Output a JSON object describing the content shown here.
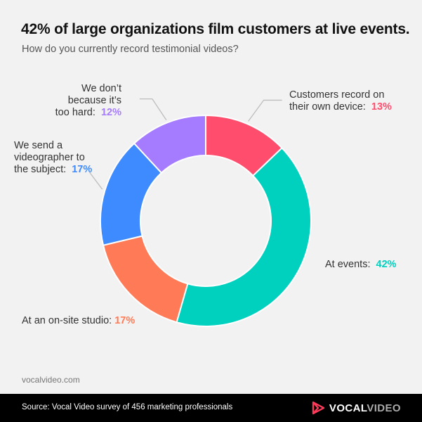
{
  "title": "42% of large organizations film customers at live events.",
  "subtitle": "How do you currently record testimonial videos?",
  "chart_data": {
    "type": "pie",
    "donut": true,
    "slices": [
      {
        "label_lines": [
          "Customers record on",
          "their own device:"
        ],
        "value": 13,
        "pct_label": "13%",
        "color": "#ff4d6d"
      },
      {
        "label_lines": [
          "At events:"
        ],
        "value": 42,
        "pct_label": "42%",
        "color": "#00d1bf"
      },
      {
        "label_lines": [
          "At an on-site studio:"
        ],
        "value": 17,
        "pct_label": "17%",
        "color": "#ff7b57"
      },
      {
        "label_lines": [
          "We send a",
          "videographer to",
          "the subject:"
        ],
        "value": 17,
        "pct_label": "17%",
        "color": "#3d8bff"
      },
      {
        "label_lines": [
          "We don’t",
          "because it’s",
          "too hard:"
        ],
        "value": 12,
        "pct_label": "12%",
        "color": "#a57cff"
      }
    ]
  },
  "website": "vocalvideo.com",
  "footer": {
    "source": "Source: Vocal Video survey of 456 marketing professionals",
    "logo_part1": "VOCAL",
    "logo_part2": "VIDEO"
  }
}
